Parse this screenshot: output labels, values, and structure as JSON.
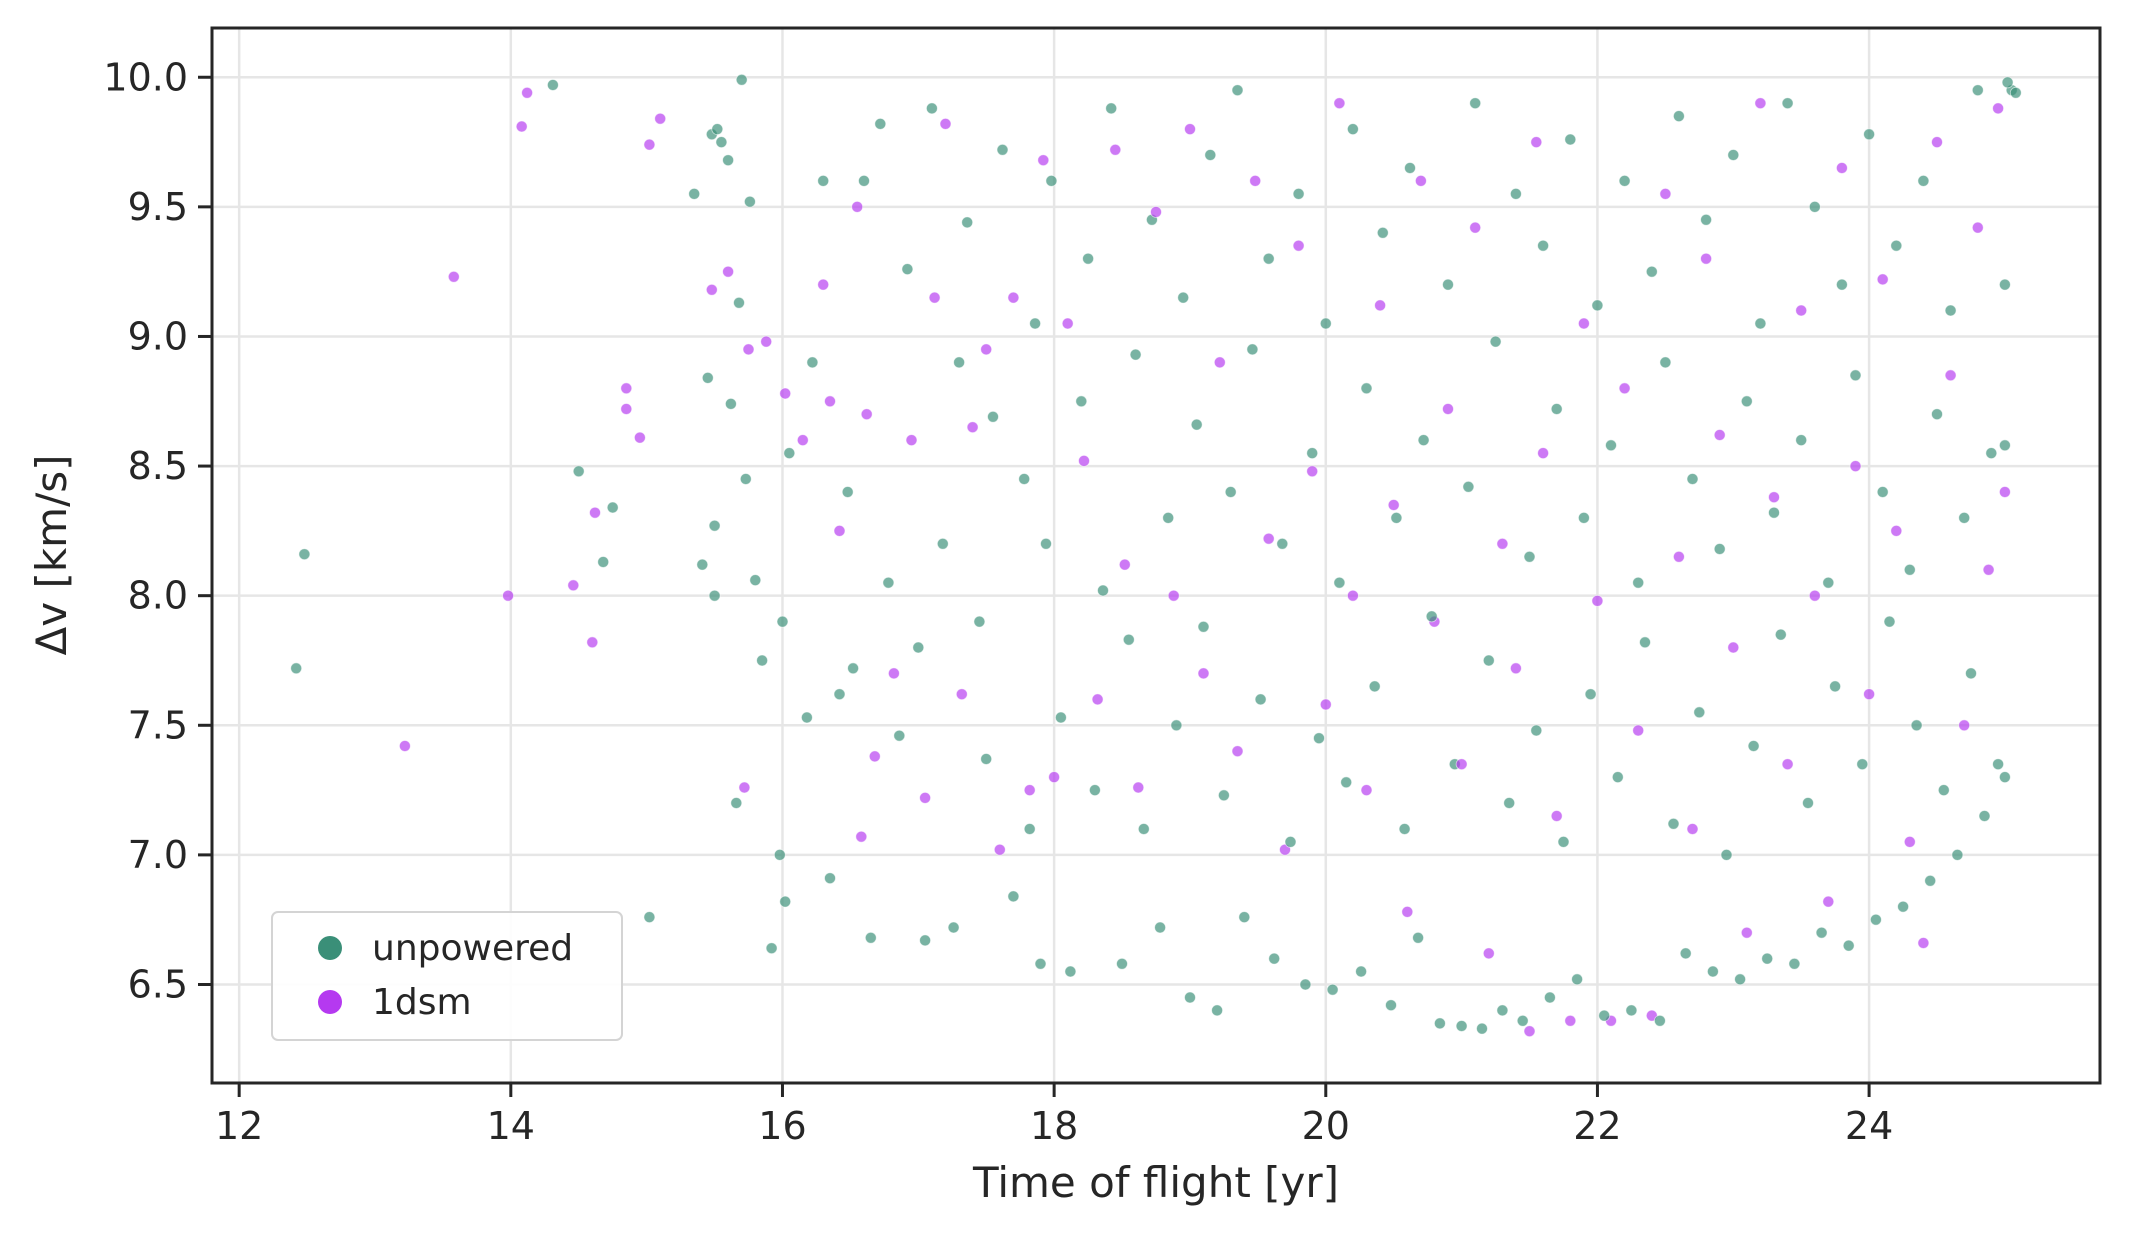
{
  "chart_data": {
    "type": "scatter",
    "title": "",
    "xlabel": "Time of flight [yr]",
    "ylabel": "Δv [km/s]",
    "xlim": [
      11.8,
      25.7
    ],
    "ylim": [
      6.12,
      10.19
    ],
    "x_ticks": [
      12,
      14,
      16,
      18,
      20,
      22,
      24
    ],
    "y_ticks": [
      6.5,
      7.0,
      7.5,
      8.0,
      8.5,
      9.0,
      9.5,
      10.0
    ],
    "x_tick_labels": [
      "12",
      "14",
      "16",
      "18",
      "20",
      "22",
      "24"
    ],
    "y_tick_labels": [
      "6.5",
      "7.0",
      "7.5",
      "8.0",
      "8.5",
      "9.0",
      "9.5",
      "10.0"
    ],
    "grid": true,
    "legend_position": "lower-left",
    "series": [
      {
        "name": "unpowered",
        "color": "#3a8f78",
        "points": [
          [
            12.42,
            7.72
          ],
          [
            12.48,
            8.16
          ],
          [
            14.31,
            9.97
          ],
          [
            14.5,
            8.48
          ],
          [
            14.68,
            8.13
          ],
          [
            14.75,
            8.34
          ],
          [
            15.02,
            6.76
          ],
          [
            15.35,
            9.55
          ],
          [
            15.41,
            8.12
          ],
          [
            15.45,
            8.84
          ],
          [
            15.48,
            9.78
          ],
          [
            15.5,
            8.27
          ],
          [
            15.5,
            8.0
          ],
          [
            15.52,
            9.8
          ],
          [
            15.55,
            9.75
          ],
          [
            15.6,
            9.68
          ],
          [
            15.62,
            8.74
          ],
          [
            15.66,
            7.2
          ],
          [
            15.68,
            9.13
          ],
          [
            15.7,
            9.99
          ],
          [
            15.73,
            8.45
          ],
          [
            15.76,
            9.52
          ],
          [
            15.8,
            8.06
          ],
          [
            15.85,
            7.75
          ],
          [
            15.92,
            6.64
          ],
          [
            15.98,
            7.0
          ],
          [
            16.0,
            7.9
          ],
          [
            16.02,
            6.82
          ],
          [
            16.05,
            8.55
          ],
          [
            16.18,
            7.53
          ],
          [
            16.22,
            8.9
          ],
          [
            16.3,
            9.6
          ],
          [
            16.35,
            6.91
          ],
          [
            16.42,
            7.62
          ],
          [
            16.48,
            8.4
          ],
          [
            16.52,
            7.72
          ],
          [
            16.6,
            9.6
          ],
          [
            16.65,
            6.68
          ],
          [
            16.72,
            9.82
          ],
          [
            16.78,
            8.05
          ],
          [
            16.86,
            7.46
          ],
          [
            16.92,
            9.26
          ],
          [
            17.0,
            7.8
          ],
          [
            17.05,
            6.67
          ],
          [
            17.1,
            9.88
          ],
          [
            17.18,
            8.2
          ],
          [
            17.26,
            6.72
          ],
          [
            17.3,
            8.9
          ],
          [
            17.36,
            9.44
          ],
          [
            17.45,
            7.9
          ],
          [
            17.5,
            7.37
          ],
          [
            17.55,
            8.69
          ],
          [
            17.62,
            9.72
          ],
          [
            17.7,
            6.84
          ],
          [
            17.78,
            8.45
          ],
          [
            17.82,
            7.1
          ],
          [
            17.86,
            9.05
          ],
          [
            17.9,
            6.58
          ],
          [
            17.94,
            8.2
          ],
          [
            17.98,
            9.6
          ],
          [
            18.05,
            7.53
          ],
          [
            18.12,
            6.55
          ],
          [
            18.2,
            8.75
          ],
          [
            18.25,
            9.3
          ],
          [
            18.3,
            7.25
          ],
          [
            18.36,
            8.02
          ],
          [
            18.42,
            9.88
          ],
          [
            18.5,
            6.58
          ],
          [
            18.55,
            7.83
          ],
          [
            18.6,
            8.93
          ],
          [
            18.66,
            7.1
          ],
          [
            18.72,
            9.45
          ],
          [
            18.78,
            6.72
          ],
          [
            18.84,
            8.3
          ],
          [
            18.9,
            7.5
          ],
          [
            18.95,
            9.15
          ],
          [
            19.0,
            6.45
          ],
          [
            19.05,
            8.66
          ],
          [
            19.1,
            7.88
          ],
          [
            19.15,
            9.7
          ],
          [
            19.2,
            6.4
          ],
          [
            19.25,
            7.23
          ],
          [
            19.3,
            8.4
          ],
          [
            19.35,
            9.95
          ],
          [
            19.4,
            6.76
          ],
          [
            19.46,
            8.95
          ],
          [
            19.52,
            7.6
          ],
          [
            19.58,
            9.3
          ],
          [
            19.62,
            6.6
          ],
          [
            19.68,
            8.2
          ],
          [
            19.74,
            7.05
          ],
          [
            19.8,
            9.55
          ],
          [
            19.85,
            6.5
          ],
          [
            19.9,
            8.55
          ],
          [
            19.95,
            7.45
          ],
          [
            20.0,
            9.05
          ],
          [
            20.05,
            6.48
          ],
          [
            20.1,
            8.05
          ],
          [
            20.15,
            7.28
          ],
          [
            20.2,
            9.8
          ],
          [
            20.26,
            6.55
          ],
          [
            20.3,
            8.8
          ],
          [
            20.36,
            7.65
          ],
          [
            20.42,
            9.4
          ],
          [
            20.48,
            6.42
          ],
          [
            20.52,
            8.3
          ],
          [
            20.58,
            7.1
          ],
          [
            20.62,
            9.65
          ],
          [
            20.68,
            6.68
          ],
          [
            20.72,
            8.6
          ],
          [
            20.78,
            7.92
          ],
          [
            20.84,
            6.35
          ],
          [
            20.9,
            9.2
          ],
          [
            20.95,
            7.35
          ],
          [
            21.0,
            6.34
          ],
          [
            21.05,
            8.42
          ],
          [
            21.1,
            9.9
          ],
          [
            21.15,
            6.33
          ],
          [
            21.2,
            7.75
          ],
          [
            21.25,
            8.98
          ],
          [
            21.3,
            6.4
          ],
          [
            21.35,
            7.2
          ],
          [
            21.4,
            9.55
          ],
          [
            21.45,
            6.36
          ],
          [
            21.5,
            8.15
          ],
          [
            21.55,
            7.48
          ],
          [
            21.6,
            9.35
          ],
          [
            21.65,
            6.45
          ],
          [
            21.7,
            8.72
          ],
          [
            21.75,
            7.05
          ],
          [
            21.8,
            9.76
          ],
          [
            21.85,
            6.52
          ],
          [
            21.9,
            8.3
          ],
          [
            21.95,
            7.62
          ],
          [
            22.0,
            9.12
          ],
          [
            22.05,
            6.38
          ],
          [
            22.1,
            8.58
          ],
          [
            22.15,
            7.3
          ],
          [
            22.2,
            9.6
          ],
          [
            22.25,
            6.4
          ],
          [
            22.3,
            8.05
          ],
          [
            22.35,
            7.82
          ],
          [
            22.4,
            9.25
          ],
          [
            22.46,
            6.36
          ],
          [
            22.5,
            8.9
          ],
          [
            22.56,
            7.12
          ],
          [
            22.6,
            9.85
          ],
          [
            22.65,
            6.62
          ],
          [
            22.7,
            8.45
          ],
          [
            22.75,
            7.55
          ],
          [
            22.8,
            9.45
          ],
          [
            22.85,
            6.55
          ],
          [
            22.9,
            8.18
          ],
          [
            22.95,
            7.0
          ],
          [
            23.0,
            9.7
          ],
          [
            23.05,
            6.52
          ],
          [
            23.1,
            8.75
          ],
          [
            23.15,
            7.42
          ],
          [
            23.2,
            9.05
          ],
          [
            23.25,
            6.6
          ],
          [
            23.3,
            8.32
          ],
          [
            23.35,
            7.85
          ],
          [
            23.4,
            9.9
          ],
          [
            23.45,
            6.58
          ],
          [
            23.5,
            8.6
          ],
          [
            23.55,
            7.2
          ],
          [
            23.6,
            9.5
          ],
          [
            23.65,
            6.7
          ],
          [
            23.7,
            8.05
          ],
          [
            23.75,
            7.65
          ],
          [
            23.8,
            9.2
          ],
          [
            23.85,
            6.65
          ],
          [
            23.9,
            8.85
          ],
          [
            23.95,
            7.35
          ],
          [
            24.0,
            9.78
          ],
          [
            24.05,
            6.75
          ],
          [
            24.1,
            8.4
          ],
          [
            24.15,
            7.9
          ],
          [
            24.2,
            9.35
          ],
          [
            24.25,
            6.8
          ],
          [
            24.3,
            8.1
          ],
          [
            24.35,
            7.5
          ],
          [
            24.4,
            9.6
          ],
          [
            24.45,
            6.9
          ],
          [
            24.5,
            8.7
          ],
          [
            24.55,
            7.25
          ],
          [
            24.6,
            9.1
          ],
          [
            24.65,
            7.0
          ],
          [
            24.7,
            8.3
          ],
          [
            24.75,
            7.7
          ],
          [
            24.8,
            9.95
          ],
          [
            24.85,
            7.15
          ],
          [
            24.9,
            8.55
          ],
          [
            24.95,
            7.35
          ],
          [
            25.0,
            7.3
          ],
          [
            25.0,
            8.58
          ],
          [
            25.0,
            9.2
          ],
          [
            25.02,
            9.98
          ],
          [
            25.05,
            9.95
          ],
          [
            25.08,
            9.94
          ]
        ]
      },
      {
        "name": "1dsm",
        "color": "#b539f0",
        "points": [
          [
            13.22,
            7.42
          ],
          [
            13.58,
            9.23
          ],
          [
            13.98,
            8.0
          ],
          [
            14.08,
            9.81
          ],
          [
            14.12,
            9.94
          ],
          [
            14.46,
            8.04
          ],
          [
            14.6,
            7.82
          ],
          [
            14.62,
            8.32
          ],
          [
            14.85,
            8.8
          ],
          [
            14.85,
            8.72
          ],
          [
            14.95,
            8.61
          ],
          [
            15.02,
            9.74
          ],
          [
            15.1,
            9.84
          ],
          [
            15.48,
            9.18
          ],
          [
            15.6,
            9.25
          ],
          [
            15.72,
            7.26
          ],
          [
            15.75,
            8.95
          ],
          [
            15.88,
            8.98
          ],
          [
            16.02,
            8.78
          ],
          [
            16.15,
            8.6
          ],
          [
            16.3,
            9.2
          ],
          [
            16.35,
            8.75
          ],
          [
            16.42,
            8.25
          ],
          [
            16.55,
            9.5
          ],
          [
            16.58,
            7.07
          ],
          [
            16.62,
            8.7
          ],
          [
            16.68,
            7.38
          ],
          [
            16.82,
            7.7
          ],
          [
            16.95,
            8.6
          ],
          [
            17.05,
            7.22
          ],
          [
            17.12,
            9.15
          ],
          [
            17.2,
            9.82
          ],
          [
            17.32,
            7.62
          ],
          [
            17.4,
            8.65
          ],
          [
            17.5,
            8.95
          ],
          [
            17.6,
            7.02
          ],
          [
            17.7,
            9.15
          ],
          [
            17.82,
            7.25
          ],
          [
            17.92,
            9.68
          ],
          [
            18.0,
            7.3
          ],
          [
            18.1,
            9.05
          ],
          [
            18.22,
            8.52
          ],
          [
            18.32,
            7.6
          ],
          [
            18.45,
            9.72
          ],
          [
            18.52,
            8.12
          ],
          [
            18.62,
            7.26
          ],
          [
            18.75,
            9.48
          ],
          [
            18.88,
            8.0
          ],
          [
            19.0,
            9.8
          ],
          [
            19.1,
            7.7
          ],
          [
            19.22,
            8.9
          ],
          [
            19.35,
            7.4
          ],
          [
            19.48,
            9.6
          ],
          [
            19.58,
            8.22
          ],
          [
            19.7,
            7.02
          ],
          [
            19.8,
            9.35
          ],
          [
            19.9,
            8.48
          ],
          [
            20.0,
            7.58
          ],
          [
            20.1,
            9.9
          ],
          [
            20.2,
            8.0
          ],
          [
            20.3,
            7.25
          ],
          [
            20.4,
            9.12
          ],
          [
            20.5,
            8.35
          ],
          [
            20.6,
            6.78
          ],
          [
            20.7,
            9.6
          ],
          [
            20.8,
            7.9
          ],
          [
            20.9,
            8.72
          ],
          [
            21.0,
            7.35
          ],
          [
            21.1,
            9.42
          ],
          [
            21.2,
            6.62
          ],
          [
            21.3,
            8.2
          ],
          [
            21.4,
            7.72
          ],
          [
            21.5,
            6.32
          ],
          [
            21.55,
            9.75
          ],
          [
            21.6,
            8.55
          ],
          [
            21.7,
            7.15
          ],
          [
            21.8,
            6.36
          ],
          [
            21.9,
            9.05
          ],
          [
            22.0,
            7.98
          ],
          [
            22.1,
            6.36
          ],
          [
            22.2,
            8.8
          ],
          [
            22.3,
            7.48
          ],
          [
            22.4,
            6.38
          ],
          [
            22.5,
            9.55
          ],
          [
            22.6,
            8.15
          ],
          [
            22.7,
            7.1
          ],
          [
            22.8,
            9.3
          ],
          [
            22.9,
            8.62
          ],
          [
            23.0,
            7.8
          ],
          [
            23.1,
            6.7
          ],
          [
            23.2,
            9.9
          ],
          [
            23.3,
            8.38
          ],
          [
            23.4,
            7.35
          ],
          [
            23.5,
            9.1
          ],
          [
            23.6,
            8.0
          ],
          [
            23.7,
            6.82
          ],
          [
            23.8,
            9.65
          ],
          [
            23.9,
            8.5
          ],
          [
            24.0,
            7.62
          ],
          [
            24.1,
            9.22
          ],
          [
            24.2,
            8.25
          ],
          [
            24.3,
            7.05
          ],
          [
            24.4,
            6.66
          ],
          [
            24.5,
            9.75
          ],
          [
            24.6,
            8.85
          ],
          [
            24.7,
            7.5
          ],
          [
            24.8,
            9.42
          ],
          [
            24.88,
            8.1
          ],
          [
            24.95,
            9.88
          ],
          [
            25.0,
            8.4
          ]
        ]
      }
    ],
    "legend": [
      {
        "name": "unpowered",
        "color": "#3a8f78"
      },
      {
        "name": "1dsm",
        "color": "#b539f0"
      }
    ]
  }
}
